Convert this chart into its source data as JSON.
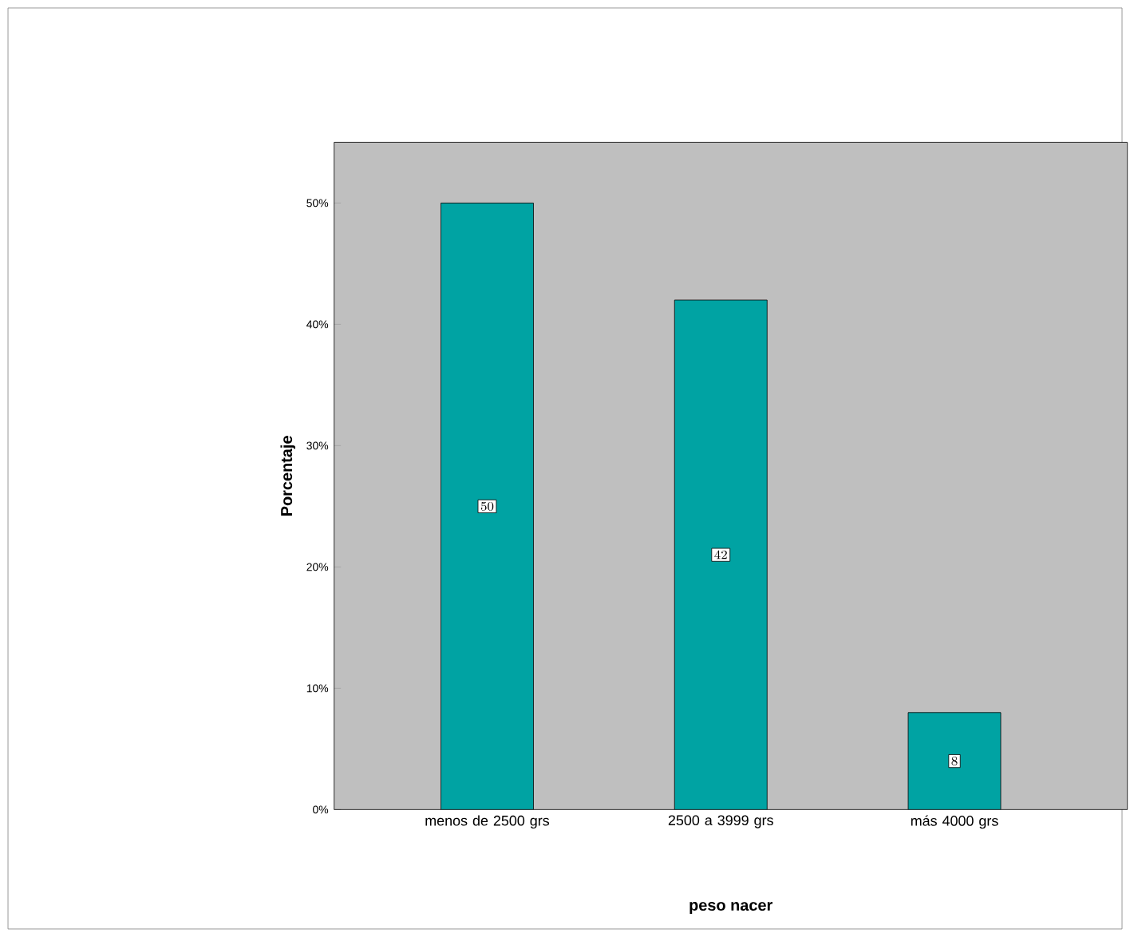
{
  "chart_data": {
    "type": "bar",
    "xlabel": "peso nacer",
    "ylabel": "Porcentaje",
    "categories": [
      "menos de 2500 grs",
      "2500 a 3999 grs",
      "más 4000 grs"
    ],
    "values": [
      50,
      42,
      8
    ],
    "color": "#00a3a3",
    "data_labels": true,
    "ylim": [
      0,
      55
    ],
    "yticks": [
      {
        "value": 0,
        "label": "0%"
      },
      {
        "value": 10,
        "label": "10%"
      },
      {
        "value": 20,
        "label": "20%"
      },
      {
        "value": 30,
        "label": "30%"
      },
      {
        "value": 40,
        "label": "40%"
      },
      {
        "value": 50,
        "label": "50%"
      }
    ]
  }
}
